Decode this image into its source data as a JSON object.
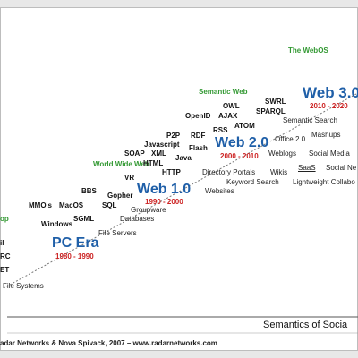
{
  "colors": {
    "era_blue": "#1f5fa8",
    "years_red": "#cc2222",
    "category_green": "#339933",
    "text": "#111111"
  },
  "categories": {
    "webos": "The WebOS",
    "semantic_web": "Semantic Web",
    "www": "World Wide Web",
    "desktop": "op"
  },
  "eras": {
    "pc": {
      "name": "PC Era",
      "years": "1980 - 1990"
    },
    "web1": {
      "name": "Web 1.0",
      "years": "1990 - 2000"
    },
    "web2": {
      "name": "Web 2.0",
      "years": "2000 - 2010"
    },
    "web3": {
      "name": "Web 3.0",
      "years": "2010 - 2020"
    }
  },
  "tech": {
    "owl": "OWL",
    "swrl": "SWRL",
    "openid": "OpenID",
    "ajax": "AJAX",
    "sparql": "SPARQL",
    "atom": "ATOM",
    "p2p": "P2P",
    "rdf": "RDF",
    "rss": "RSS",
    "javascript": "Javascript",
    "soap": "SOAP",
    "xml": "XML",
    "flash": "Flash",
    "html": "HTML",
    "java": "Java",
    "vr": "VR",
    "http": "HTTP",
    "bbs": "BBS",
    "gopher": "Gopher",
    "mmos": "MMO's",
    "macos": "MacOS",
    "sql": "SQL",
    "sgml": "SGML",
    "windows": "Windows",
    "il": "il",
    "rc": "RC",
    "et": "ET"
  },
  "apps": {
    "semantic_search": "Semantic Search",
    "office2": "Office 2.0",
    "mashups": "Mashups",
    "weblogs": "Weblogs",
    "social_media": "Social Media",
    "saas": "SaaS",
    "social_net": "Social Ne",
    "directory_portals": "Directory Portals",
    "wikis": "Wikis",
    "keyword_search": "Keyword Search",
    "lightweight": "Lightweight Collabo",
    "websites": "Websites",
    "groupware": "Groupware",
    "databases": "Databases",
    "file_servers": "File Servers",
    "file_systems": "File Systems"
  },
  "footer": {
    "title": "Semantics of Socia",
    "credit": "adar Networks & Nova Spivack, 2007 – www.radarnetworks.com"
  }
}
